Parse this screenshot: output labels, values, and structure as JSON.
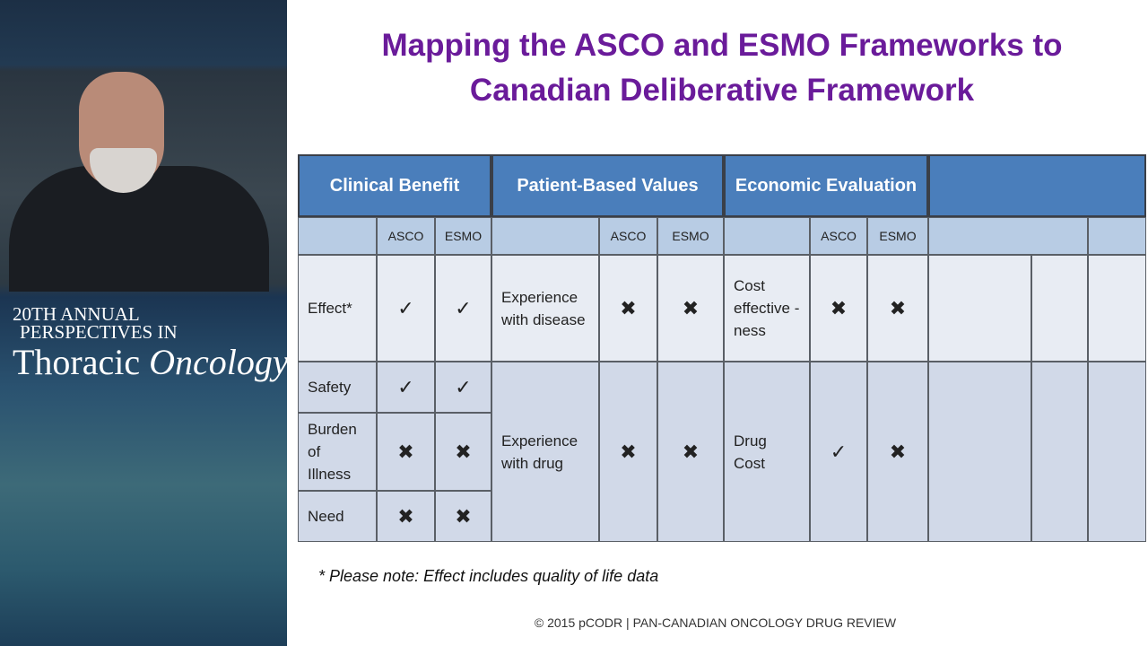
{
  "branding": {
    "line1": "20TH ANNUAL",
    "line2": "PERSPECTIVES IN",
    "line3": "Thoracic",
    "line4": "Oncology"
  },
  "slide": {
    "title": [
      "Mapping the ASCO and ESMO Frameworks to",
      "Canadian Deliberative Framework"
    ],
    "footnote": "* Please note: Effect includes quality of life data",
    "copyright": "© 2015 pCODR | PAN-CANADIAN ONCOLOGY DRUG REVIEW"
  },
  "table": {
    "groups": [
      {
        "header": "Clinical Benefit",
        "columns": [
          "ASCO",
          "ESMO"
        ],
        "rows": [
          {
            "label": "Effect*",
            "marks": [
              "✓",
              "✓"
            ]
          },
          {
            "label": "Safety",
            "marks": [
              "✓",
              "✓"
            ]
          },
          {
            "label": "Burden of Illness",
            "marks": [
              "✖",
              "✖"
            ]
          },
          {
            "label": "Need",
            "marks": [
              "✖",
              "✖"
            ]
          }
        ]
      },
      {
        "header": "Patient-Based Values",
        "columns": [
          "ASCO",
          "ESMO"
        ],
        "rows": [
          {
            "label": "Experience with disease",
            "marks": [
              "✖",
              "✖"
            ]
          },
          {
            "label": "Experience with drug",
            "marks": [
              "✖",
              "✖"
            ]
          }
        ]
      },
      {
        "header": "Economic Evaluation",
        "columns": [
          "ASCO",
          "ESMO"
        ],
        "rows": [
          {
            "label": "Cost effective -ness",
            "marks": [
              "✖",
              "✖"
            ]
          },
          {
            "label": "Drug Cost",
            "marks": [
              "✓",
              "✖"
            ]
          }
        ]
      }
    ]
  }
}
